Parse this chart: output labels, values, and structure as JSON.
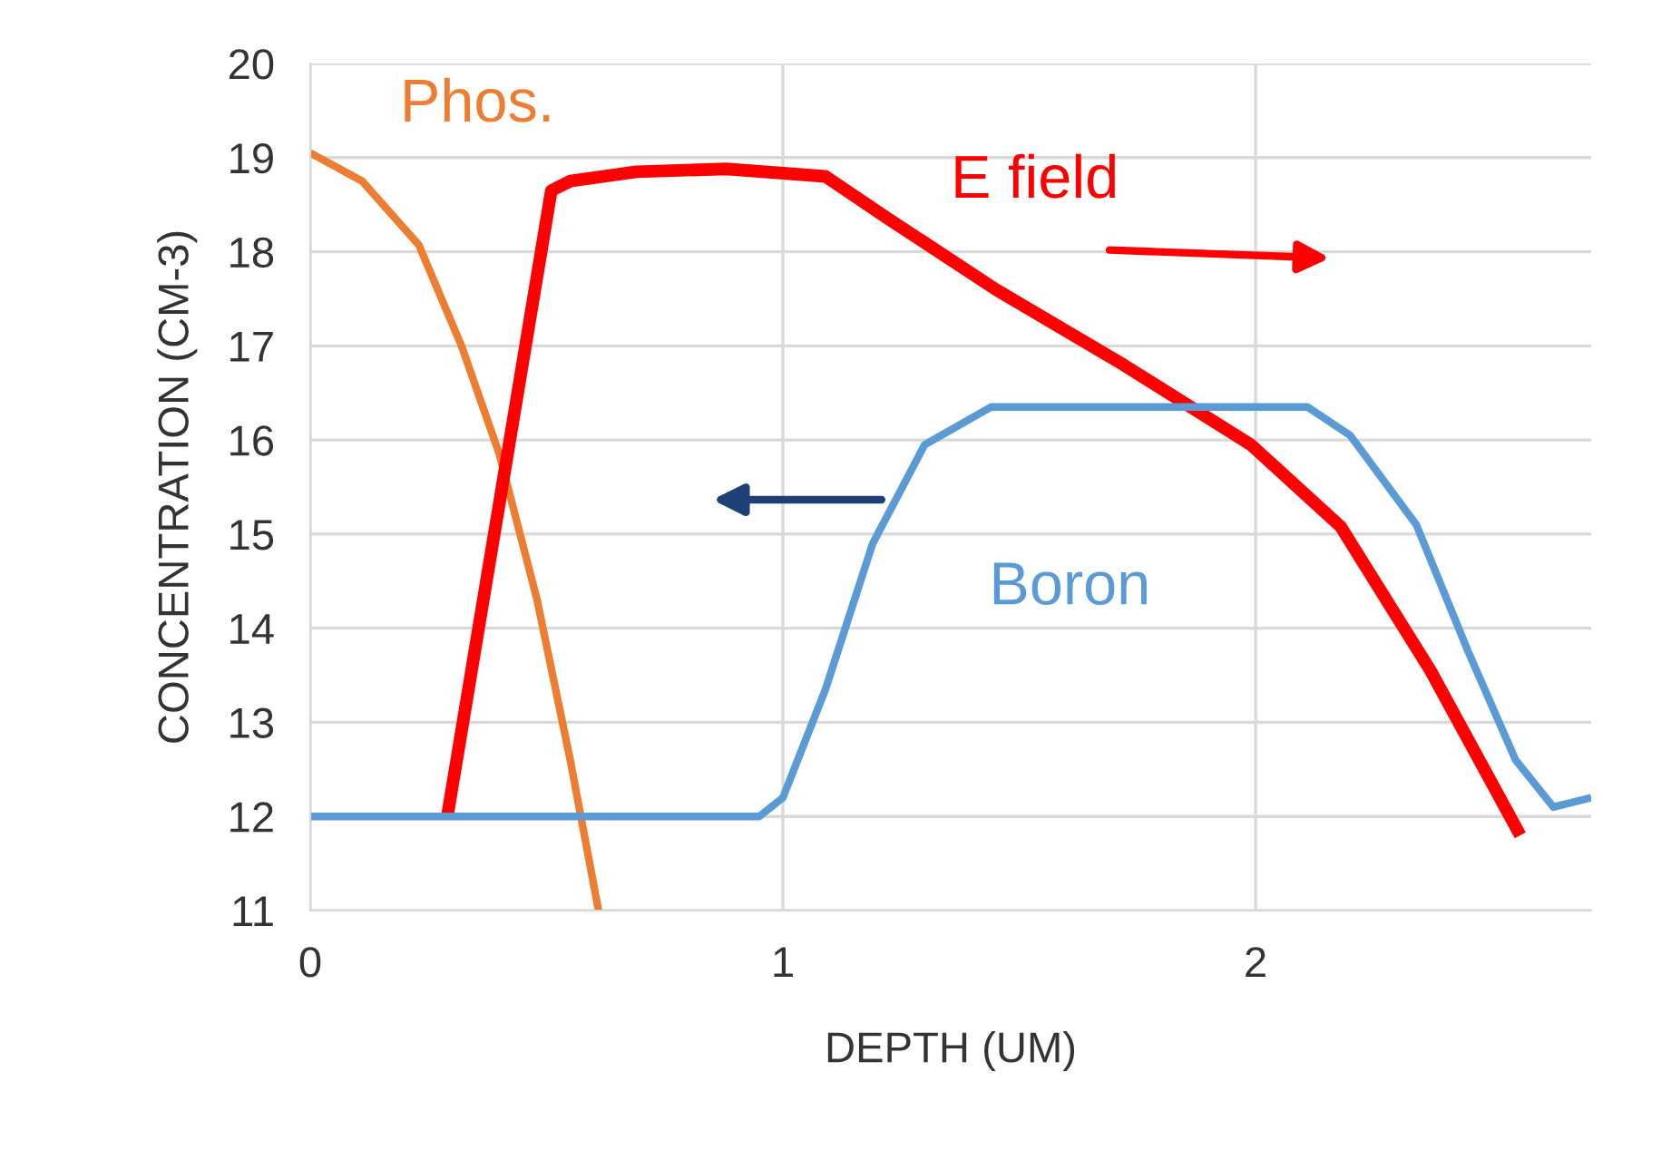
{
  "chart_data": {
    "type": "line",
    "xlabel": "DEPTH (UM)",
    "ylabel": "CONCENTRATION (CM-3)",
    "xlim": [
      0,
      2.71
    ],
    "xticks": [
      0,
      1,
      2
    ],
    "ylim": [
      11,
      20
    ],
    "yticks": [
      11,
      12,
      13,
      14,
      15,
      16,
      17,
      18,
      19,
      20
    ],
    "grid": true,
    "marker": "none",
    "line_style": "solid",
    "series": [
      {
        "name": "Phos.",
        "color": "#ed7d31",
        "x": [
          0,
          0.11,
          0.23,
          0.32,
          0.4,
          0.48,
          0.55,
          0.61
        ],
        "values": [
          19.05,
          18.75,
          18.07,
          17.0,
          15.85,
          14.3,
          12.6,
          11.0
        ]
      },
      {
        "name": "E field",
        "color": "#ff0000",
        "x": [
          0.29,
          0.51,
          0.55,
          0.69,
          0.88,
          1.09,
          1.22,
          1.45,
          1.72,
          1.99,
          2.18,
          2.37,
          2.56
        ],
        "values": [
          12.0,
          18.65,
          18.75,
          18.85,
          18.88,
          18.8,
          18.36,
          17.6,
          16.8,
          15.95,
          15.08,
          13.55,
          11.8
        ]
      },
      {
        "name": "Boron",
        "color": "#5b9bd5",
        "x": [
          0,
          0.95,
          1.0,
          1.09,
          1.19,
          1.3,
          1.44,
          2.05,
          2.11,
          2.2,
          2.34,
          2.45,
          2.55,
          2.63,
          2.71
        ],
        "values": [
          12.0,
          12.0,
          12.2,
          13.35,
          14.9,
          15.95,
          16.35,
          16.35,
          16.35,
          16.05,
          15.1,
          13.75,
          12.6,
          12.1,
          12.2
        ]
      }
    ]
  }
}
